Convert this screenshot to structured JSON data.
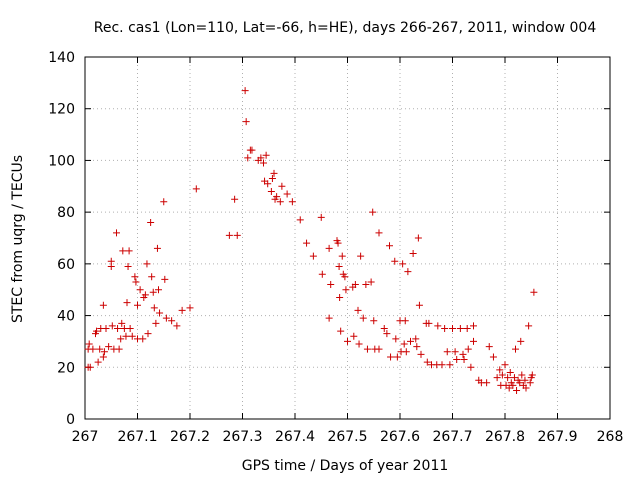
{
  "chart_data": {
    "type": "scatter",
    "title": "Rec. cas1 (Lon=110, Lat=-66, h=HE), days 266-267, 2011, window 004",
    "xlabel": "GPS time / Days of year 2011",
    "ylabel": "STEC from uqrg / TECUs",
    "xlim": [
      267,
      268
    ],
    "ylim": [
      0,
      140
    ],
    "xticks": [
      267,
      267.1,
      267.2,
      267.3,
      267.4,
      267.5,
      267.6,
      267.7,
      267.8,
      267.9,
      268
    ],
    "xtick_labels": [
      "267",
      "267.1",
      "267.2",
      "267.3",
      "267.4",
      "267.5",
      "267.6",
      "267.7",
      "267.8",
      "267.9",
      "268"
    ],
    "yticks": [
      0,
      20,
      40,
      60,
      80,
      100,
      120,
      140
    ],
    "ytick_labels": [
      "0",
      "20",
      "40",
      "60",
      "80",
      "100",
      "120",
      "140"
    ],
    "grid": true,
    "marker": "+",
    "color": "#cc0000",
    "series": [
      {
        "name": "STEC",
        "points": [
          [
            267.006,
            20
          ],
          [
            267.006,
            27
          ],
          [
            267.008,
            29
          ],
          [
            267.01,
            20
          ],
          [
            267.015,
            27
          ],
          [
            267.02,
            33
          ],
          [
            267.022,
            34
          ],
          [
            267.025,
            22
          ],
          [
            267.028,
            27
          ],
          [
            267.03,
            35
          ],
          [
            267.035,
            44
          ],
          [
            267.035,
            24
          ],
          [
            267.037,
            26
          ],
          [
            267.04,
            35
          ],
          [
            267.045,
            28
          ],
          [
            267.05,
            61
          ],
          [
            267.05,
            59
          ],
          [
            267.052,
            36
          ],
          [
            267.055,
            27
          ],
          [
            267.06,
            72
          ],
          [
            267.062,
            35
          ],
          [
            267.065,
            27
          ],
          [
            267.068,
            31
          ],
          [
            267.07,
            37
          ],
          [
            267.072,
            65
          ],
          [
            267.075,
            35
          ],
          [
            267.078,
            32
          ],
          [
            267.08,
            45
          ],
          [
            267.082,
            59
          ],
          [
            267.084,
            65
          ],
          [
            267.086,
            35
          ],
          [
            267.09,
            32
          ],
          [
            267.095,
            55
          ],
          [
            267.097,
            53
          ],
          [
            267.1,
            44
          ],
          [
            267.1,
            31
          ],
          [
            267.105,
            50
          ],
          [
            267.11,
            31
          ],
          [
            267.112,
            47
          ],
          [
            267.115,
            48
          ],
          [
            267.118,
            60
          ],
          [
            267.12,
            33
          ],
          [
            267.125,
            76
          ],
          [
            267.127,
            55
          ],
          [
            267.13,
            49
          ],
          [
            267.132,
            43
          ],
          [
            267.135,
            37
          ],
          [
            267.138,
            66
          ],
          [
            267.14,
            50
          ],
          [
            267.142,
            41
          ],
          [
            267.15,
            84
          ],
          [
            267.152,
            54
          ],
          [
            267.155,
            39
          ],
          [
            267.165,
            38
          ],
          [
            267.175,
            36
          ],
          [
            267.185,
            42
          ],
          [
            267.2,
            43
          ],
          [
            267.212,
            89
          ],
          [
            267.275,
            71
          ],
          [
            267.285,
            85
          ],
          [
            267.29,
            71
          ],
          [
            267.305,
            127
          ],
          [
            267.307,
            115
          ],
          [
            267.31,
            101
          ],
          [
            267.315,
            104
          ],
          [
            267.318,
            104
          ],
          [
            267.33,
            100
          ],
          [
            267.335,
            101
          ],
          [
            267.34,
            99
          ],
          [
            267.342,
            92
          ],
          [
            267.345,
            102
          ],
          [
            267.348,
            91
          ],
          [
            267.355,
            88
          ],
          [
            267.357,
            93
          ],
          [
            267.36,
            95
          ],
          [
            267.362,
            85
          ],
          [
            267.365,
            86
          ],
          [
            267.372,
            84
          ],
          [
            267.375,
            90
          ],
          [
            267.385,
            87
          ],
          [
            267.395,
            84
          ],
          [
            267.41,
            77
          ],
          [
            267.422,
            68
          ],
          [
            267.435,
            63
          ],
          [
            267.45,
            78
          ],
          [
            267.452,
            56
          ],
          [
            267.465,
            39
          ],
          [
            267.465,
            66
          ],
          [
            267.468,
            52
          ],
          [
            267.48,
            69
          ],
          [
            267.482,
            68
          ],
          [
            267.484,
            59
          ],
          [
            267.485,
            47
          ],
          [
            267.487,
            34
          ],
          [
            267.49,
            63
          ],
          [
            267.492,
            56
          ],
          [
            267.495,
            55
          ],
          [
            267.497,
            50
          ],
          [
            267.5,
            30
          ],
          [
            267.51,
            51
          ],
          [
            267.512,
            32
          ],
          [
            267.515,
            52
          ],
          [
            267.52,
            42
          ],
          [
            267.522,
            29
          ],
          [
            267.525,
            63
          ],
          [
            267.53,
            39
          ],
          [
            267.535,
            52
          ],
          [
            267.538,
            27
          ],
          [
            267.545,
            53
          ],
          [
            267.548,
            80
          ],
          [
            267.55,
            38
          ],
          [
            267.552,
            27
          ],
          [
            267.56,
            72
          ],
          [
            267.56,
            27
          ],
          [
            267.57,
            35
          ],
          [
            267.575,
            33
          ],
          [
            267.58,
            67
          ],
          [
            267.582,
            24
          ],
          [
            267.59,
            61
          ],
          [
            267.592,
            31
          ],
          [
            267.595,
            24
          ],
          [
            267.6,
            38
          ],
          [
            267.602,
            26
          ],
          [
            267.605,
            60
          ],
          [
            267.608,
            29
          ],
          [
            267.61,
            38
          ],
          [
            267.612,
            26
          ],
          [
            267.615,
            57
          ],
          [
            267.62,
            30
          ],
          [
            267.625,
            64
          ],
          [
            267.63,
            31
          ],
          [
            267.632,
            28
          ],
          [
            267.635,
            70
          ],
          [
            267.637,
            44
          ],
          [
            267.64,
            25
          ],
          [
            267.65,
            37
          ],
          [
            267.652,
            22
          ],
          [
            267.655,
            37
          ],
          [
            267.66,
            21
          ],
          [
            267.67,
            21
          ],
          [
            267.672,
            36
          ],
          [
            267.68,
            21
          ],
          [
            267.685,
            35
          ],
          [
            267.69,
            26
          ],
          [
            267.695,
            21
          ],
          [
            267.7,
            35
          ],
          [
            267.705,
            26
          ],
          [
            267.708,
            23
          ],
          [
            267.715,
            35
          ],
          [
            267.72,
            25
          ],
          [
            267.722,
            23
          ],
          [
            267.728,
            35
          ],
          [
            267.73,
            27
          ],
          [
            267.735,
            20
          ],
          [
            267.74,
            30
          ],
          [
            267.74,
            36
          ],
          [
            267.75,
            15
          ],
          [
            267.755,
            14
          ],
          [
            267.765,
            14
          ],
          [
            267.77,
            28
          ],
          [
            267.778,
            24
          ],
          [
            267.785,
            16
          ],
          [
            267.79,
            19
          ],
          [
            267.792,
            13
          ],
          [
            267.795,
            17
          ],
          [
            267.8,
            21
          ],
          [
            267.802,
            13
          ],
          [
            267.805,
            16
          ],
          [
            267.808,
            12
          ],
          [
            267.81,
            18
          ],
          [
            267.812,
            14
          ],
          [
            267.815,
            13
          ],
          [
            267.818,
            16
          ],
          [
            267.82,
            27
          ],
          [
            267.822,
            11
          ],
          [
            267.825,
            15
          ],
          [
            267.828,
            14
          ],
          [
            267.83,
            30
          ],
          [
            267.832,
            17
          ],
          [
            267.835,
            13
          ],
          [
            267.838,
            15
          ],
          [
            267.84,
            12
          ],
          [
            267.845,
            36
          ],
          [
            267.848,
            14
          ],
          [
            267.85,
            16
          ],
          [
            267.852,
            17
          ],
          [
            267.855,
            49
          ]
        ]
      }
    ]
  }
}
